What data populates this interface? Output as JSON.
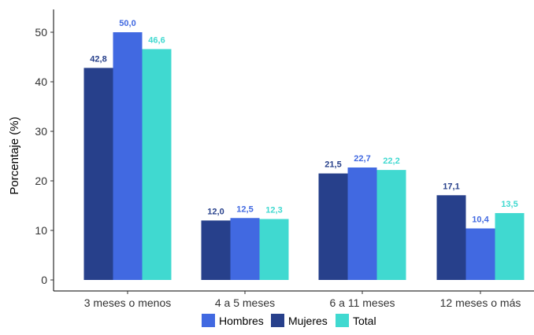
{
  "chart_data": {
    "type": "bar",
    "ylabel": "Porcentaje (%)",
    "xlabel": "",
    "ylim": [
      0,
      52.5
    ],
    "yticks": [
      0,
      10,
      20,
      30,
      40,
      50
    ],
    "grid": false,
    "legend_position": "bottom",
    "categories": [
      "3 meses o menos",
      "4 a 5 meses",
      "6 a 11 meses",
      "12 meses o más"
    ],
    "series": [
      {
        "name": "Mujeres",
        "color": "#27408B",
        "values": [
          42.8,
          12.0,
          21.5,
          17.1
        ],
        "labels": [
          "42,8",
          "12,0",
          "21,5",
          "17,1"
        ]
      },
      {
        "name": "Hombres",
        "color": "#4169E1",
        "values": [
          50.0,
          12.5,
          22.7,
          10.4
        ],
        "labels": [
          "50,0",
          "12,5",
          "22,7",
          "10,4"
        ]
      },
      {
        "name": "Total",
        "color": "#40D9D0",
        "values": [
          46.6,
          12.3,
          22.2,
          13.5
        ],
        "labels": [
          "46,6",
          "12,3",
          "22,2",
          "13,5"
        ]
      }
    ],
    "legend_order": [
      "Hombres",
      "Mujeres",
      "Total"
    ]
  }
}
